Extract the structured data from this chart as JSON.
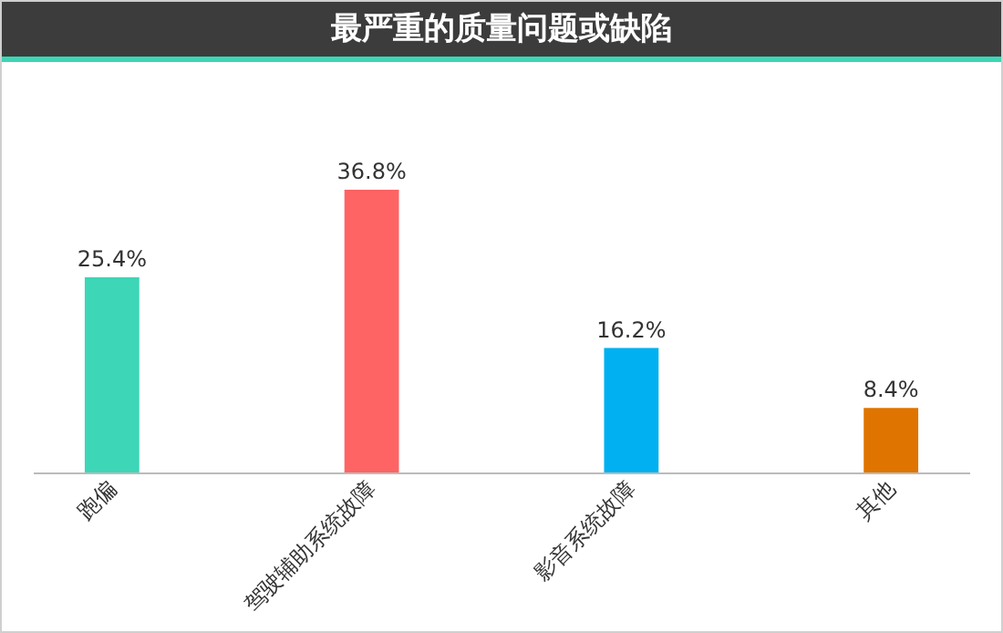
{
  "chart_data": {
    "type": "bar",
    "title": "最严重的质量问题或缺陷",
    "categories": [
      "跑偏",
      "驾驶辅助系统故障",
      "影音系统故障",
      "其他"
    ],
    "values": [
      25.4,
      36.8,
      16.2,
      8.4
    ],
    "colors": [
      "#3dd6b7",
      "#ff6464",
      "#00b0f0",
      "#e07400"
    ],
    "value_labels": [
      "25.4%",
      "36.8%",
      "16.2%",
      "8.4%"
    ]
  }
}
